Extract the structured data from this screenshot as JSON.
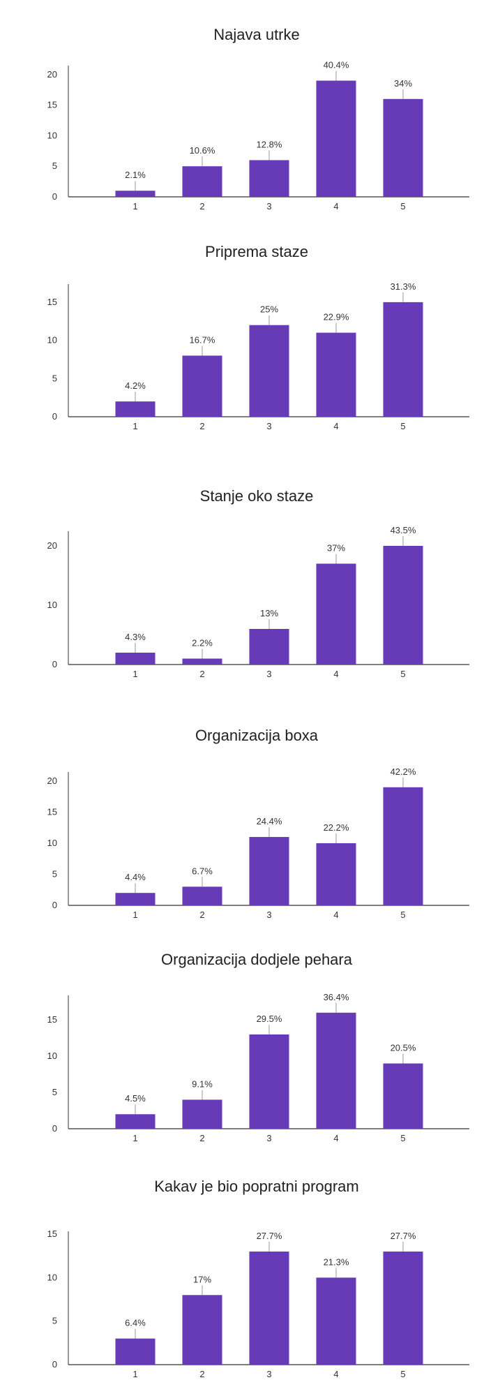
{
  "colors": {
    "bar": "#673ab7",
    "axis": "#333333",
    "leader": "#999999",
    "text": "#222222"
  },
  "chart_data": [
    {
      "type": "bar",
      "title": "Najava utrke",
      "categories": [
        "1",
        "2",
        "3",
        "4",
        "5"
      ],
      "values": [
        1,
        5,
        6,
        19,
        16
      ],
      "labels": [
        "2.1%",
        "10.6%",
        "12.8%",
        "40.4%",
        "34%"
      ],
      "yticks": [
        0,
        5,
        10,
        15,
        20
      ],
      "ylim": [
        0,
        21
      ],
      "grid": false
    },
    {
      "type": "bar",
      "title": "Priprema staze",
      "categories": [
        "1",
        "2",
        "3",
        "4",
        "5"
      ],
      "values": [
        2,
        8,
        12,
        11,
        15
      ],
      "labels": [
        "4.2%",
        "16.7%",
        "25%",
        "22.9%",
        "31.3%"
      ],
      "yticks": [
        0,
        5,
        10,
        15
      ],
      "ylim": [
        0,
        17
      ],
      "grid": false
    },
    {
      "type": "bar",
      "title": "Stanje oko staze",
      "categories": [
        "1",
        "2",
        "3",
        "4",
        "5"
      ],
      "values": [
        2,
        1,
        6,
        17,
        20
      ],
      "labels": [
        "4.3%",
        "2.2%",
        "13%",
        "37%",
        "43.5%"
      ],
      "yticks": [
        0,
        10,
        20
      ],
      "ylim": [
        0,
        22
      ],
      "grid": false
    },
    {
      "type": "bar",
      "title": "Organizacija boxa",
      "categories": [
        "1",
        "2",
        "3",
        "4",
        "5"
      ],
      "values": [
        2,
        3,
        11,
        10,
        19
      ],
      "labels": [
        "4.4%",
        "6.7%",
        "24.4%",
        "22.2%",
        "42.2%"
      ],
      "yticks": [
        0,
        5,
        10,
        15,
        20
      ],
      "ylim": [
        0,
        21
      ],
      "grid": false
    },
    {
      "type": "bar",
      "title": "Organizacija dodjele pehara",
      "categories": [
        "1",
        "2",
        "3",
        "4",
        "5"
      ],
      "values": [
        2,
        4,
        13,
        16,
        9
      ],
      "labels": [
        "4.5%",
        "9.1%",
        "29.5%",
        "36.4%",
        "20.5%"
      ],
      "yticks": [
        0,
        5,
        10,
        15
      ],
      "ylim": [
        0,
        18
      ],
      "grid": false
    },
    {
      "type": "bar",
      "title": "Kakav je bio popratni program",
      "categories": [
        "1",
        "2",
        "3",
        "4",
        "5"
      ],
      "values": [
        3,
        8,
        13,
        10,
        13
      ],
      "labels": [
        "6.4%",
        "17%",
        "27.7%",
        "21.3%",
        "27.7%"
      ],
      "yticks": [
        0,
        5,
        10,
        15
      ],
      "ylim": [
        0,
        15
      ],
      "grid": false
    }
  ]
}
